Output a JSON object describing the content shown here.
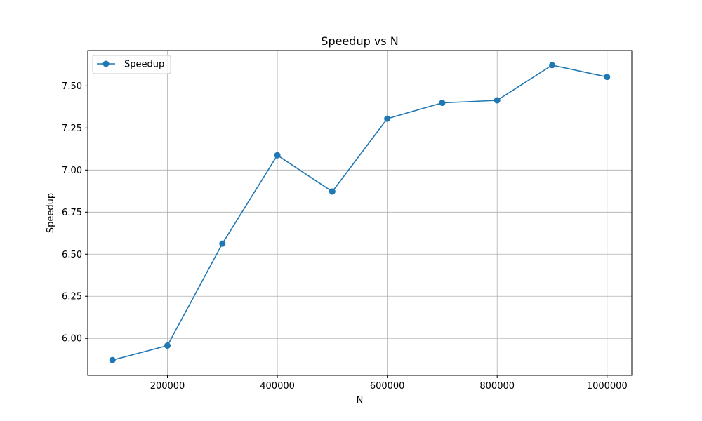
{
  "chart_data": {
    "type": "line",
    "title": "Speedup vs N",
    "xlabel": "N",
    "ylabel": "Speedup",
    "x": [
      100000,
      200000,
      300000,
      400000,
      500000,
      600000,
      700000,
      800000,
      900000,
      1000000
    ],
    "series": [
      {
        "name": "Speedup",
        "values": [
          5.871,
          5.957,
          6.563,
          7.088,
          6.872,
          7.305,
          7.399,
          7.414,
          7.623,
          7.553
        ],
        "color": "#1f77b4",
        "marker": "circle"
      }
    ],
    "xlim": [
      55000,
      1045000
    ],
    "ylim": [
      5.78,
      7.71
    ],
    "xticks": [
      200000,
      400000,
      600000,
      800000,
      1000000
    ],
    "xtick_labels": [
      "200000",
      "400000",
      "600000",
      "800000",
      "1000000"
    ],
    "yticks": [
      6.0,
      6.25,
      6.5,
      6.75,
      7.0,
      7.25,
      7.5
    ],
    "ytick_labels": [
      "6.00",
      "6.25",
      "6.50",
      "6.75",
      "7.00",
      "7.25",
      "7.50"
    ],
    "grid": true,
    "legend_position": "top-left"
  }
}
